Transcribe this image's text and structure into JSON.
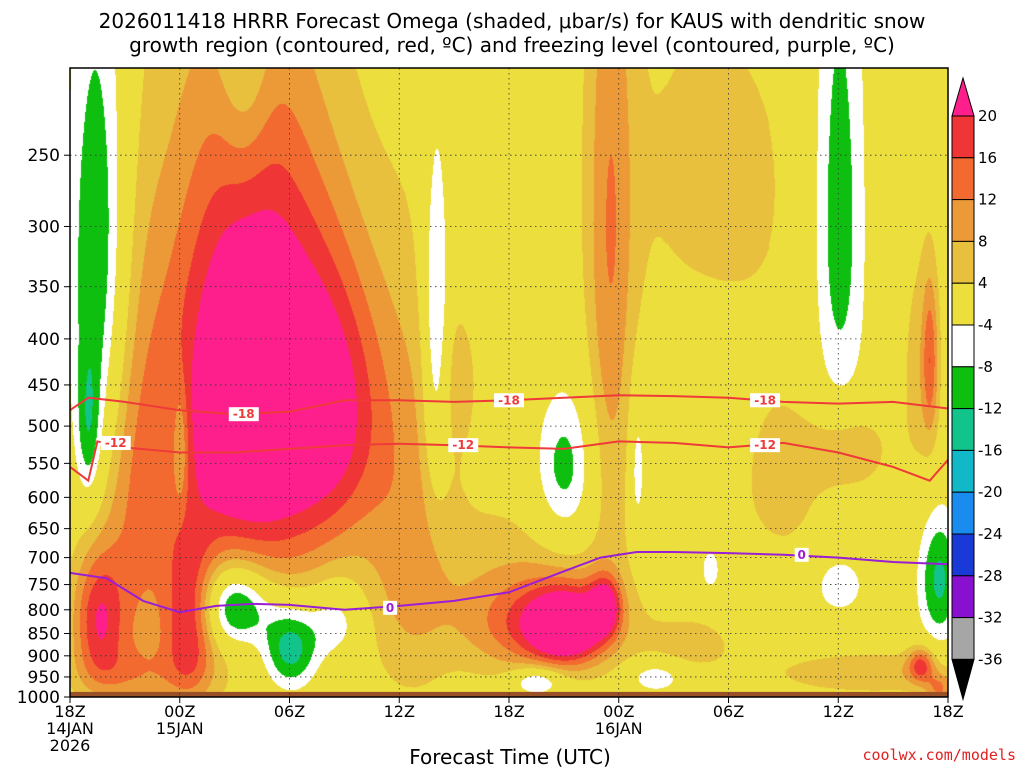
{
  "chart_data": {
    "type": "heatmap",
    "title_line1": "2026011418 HRRR Forecast Omega (shaded, μbar/s) for KAUS with dendritic snow",
    "title_line2": "growth region (contoured, red, ºC) and freezing level (contoured, purple, ºC)",
    "xlabel": "Forecast Time (UTC)",
    "ylabel": "",
    "x_range_hours": [
      0,
      48
    ],
    "y_range_hPa": [
      200,
      1000
    ],
    "y_ticks": [
      "250",
      "300",
      "350",
      "400",
      "450",
      "500",
      "550",
      "600",
      "650",
      "700",
      "750",
      "800",
      "850",
      "900",
      "950",
      "1000"
    ],
    "y_tick_values": [
      250,
      300,
      350,
      400,
      450,
      500,
      550,
      600,
      650,
      700,
      750,
      800,
      850,
      900,
      950,
      1000
    ],
    "x_ticks": [
      {
        "hour": 0,
        "line1": "18Z",
        "line2": "14JAN",
        "line3": "2026"
      },
      {
        "hour": 6,
        "line1": "00Z",
        "line2": "15JAN",
        "line3": ""
      },
      {
        "hour": 12,
        "line1": "06Z",
        "line2": "",
        "line3": ""
      },
      {
        "hour": 18,
        "line1": "12Z",
        "line2": "",
        "line3": ""
      },
      {
        "hour": 24,
        "line1": "18Z",
        "line2": "",
        "line3": ""
      },
      {
        "hour": 30,
        "line1": "00Z",
        "line2": "16JAN",
        "line3": ""
      },
      {
        "hour": 36,
        "line1": "06Z",
        "line2": "",
        "line3": ""
      },
      {
        "hour": 42,
        "line1": "12Z",
        "line2": "",
        "line3": ""
      },
      {
        "hour": 48,
        "line1": "18Z",
        "line2": "",
        "line3": ""
      }
    ],
    "grid": true,
    "colorbar": {
      "labels": [
        "20",
        "16",
        "12",
        "8",
        "4",
        "-4",
        "-8",
        "-12",
        "-16",
        "-20",
        "-24",
        "-28",
        "-32",
        "-36"
      ],
      "levels": [
        20,
        16,
        12,
        8,
        4,
        -4,
        -8,
        -12,
        -16,
        -20,
        -24,
        -28,
        -32,
        -36
      ],
      "colors": [
        "#ff1f8c",
        "#ef3535",
        "#f26a30",
        "#ec9a38",
        "#e8c03d",
        "#ecde3c",
        "#ffffff",
        "#0fbf10",
        "#12c48c",
        "#10b8c8",
        "#1a8cf0",
        "#1a3ad8",
        "#8a10d0",
        "#a6a6a6",
        "#000000"
      ]
    },
    "omega_blobs": [
      {
        "t": 1.5,
        "p": 330,
        "st": 1.2,
        "sp": 150,
        "v": -14
      },
      {
        "t": 1.0,
        "p": 510,
        "st": 0.5,
        "sp": 70,
        "v": -9
      },
      {
        "t": 9.5,
        "p": 160,
        "st": 1.0,
        "sp": 70,
        "v": -10
      },
      {
        "t": 6.0,
        "p": 530,
        "st": 0.3,
        "sp": 60,
        "v": -9
      },
      {
        "t": 9.0,
        "p": 790,
        "st": 1.4,
        "sp": 60,
        "v": -20
      },
      {
        "t": 12.0,
        "p": 880,
        "st": 1.1,
        "sp": 70,
        "v": -17
      },
      {
        "t": 14.5,
        "p": 820,
        "st": 1.1,
        "sp": 60,
        "v": -9
      },
      {
        "t": 20.0,
        "p": 400,
        "st": 0.5,
        "sp": 120,
        "v": -13
      },
      {
        "t": 27.0,
        "p": 560,
        "st": 1.2,
        "sp": 80,
        "v": -11
      },
      {
        "t": 25.5,
        "p": 960,
        "st": 1.0,
        "sp": 25,
        "v": -12
      },
      {
        "t": 31.0,
        "p": 560,
        "st": 0.3,
        "sp": 70,
        "v": -8
      },
      {
        "t": 32.0,
        "p": 950,
        "st": 1.0,
        "sp": 25,
        "v": -9
      },
      {
        "t": 35.0,
        "p": 720,
        "st": 0.4,
        "sp": 30,
        "v": -8
      },
      {
        "t": 42.0,
        "p": 290,
        "st": 1.1,
        "sp": 150,
        "v": -12
      },
      {
        "t": 42.0,
        "p": 750,
        "st": 1.0,
        "sp": 40,
        "v": -8
      },
      {
        "t": 47.5,
        "p": 740,
        "st": 0.8,
        "sp": 90,
        "v": -13
      },
      {
        "t": 10.0,
        "p": 440,
        "st": 3.0,
        "sp": 170,
        "v": 22
      },
      {
        "t": 14.5,
        "p": 480,
        "st": 2.0,
        "sp": 120,
        "v": 14
      },
      {
        "t": 9.0,
        "p": 530,
        "st": 4.5,
        "sp": 260,
        "v": 10
      },
      {
        "t": 1.5,
        "p": 820,
        "st": 1.0,
        "sp": 100,
        "v": 17
      },
      {
        "t": 6.5,
        "p": 830,
        "st": 1.0,
        "sp": 120,
        "v": 16
      },
      {
        "t": 3.5,
        "p": 650,
        "st": 1.3,
        "sp": 250,
        "v": 8
      },
      {
        "t": 18.5,
        "p": 640,
        "st": 1.6,
        "sp": 250,
        "v": 7
      },
      {
        "t": 21.0,
        "p": 440,
        "st": 1.0,
        "sp": 60,
        "v": 5
      },
      {
        "t": 26.0,
        "p": 830,
        "st": 2.6,
        "sp": 70,
        "v": 14
      },
      {
        "t": 27.2,
        "p": 835,
        "st": 1.3,
        "sp": 50,
        "v": 22
      },
      {
        "t": 29.2,
        "p": 790,
        "st": 0.6,
        "sp": 40,
        "v": 18
      },
      {
        "t": 29.5,
        "p": 340,
        "st": 0.9,
        "sp": 230,
        "v": 10
      },
      {
        "t": 24.0,
        "p": 760,
        "st": 4.5,
        "sp": 140,
        "v": 6
      },
      {
        "t": 35.0,
        "p": 260,
        "st": 5.0,
        "sp": 110,
        "v": 5
      },
      {
        "t": 39.0,
        "p": 580,
        "st": 2.5,
        "sp": 120,
        "v": 5
      },
      {
        "t": 42.5,
        "p": 530,
        "st": 1.5,
        "sp": 40,
        "v": 8
      },
      {
        "t": 46.5,
        "p": 440,
        "st": 0.8,
        "sp": 100,
        "v": 6
      },
      {
        "t": 47.0,
        "p": 420,
        "st": 0.3,
        "sp": 60,
        "v": 11
      },
      {
        "t": 44.0,
        "p": 940,
        "st": 4.5,
        "sp": 40,
        "v": 7
      },
      {
        "t": 46.5,
        "p": 920,
        "st": 0.5,
        "sp": 30,
        "v": 14
      },
      {
        "t": 47.5,
        "p": 980,
        "st": 0.5,
        "sp": 25,
        "v": 10
      },
      {
        "t": 3.5,
        "p": 940,
        "st": 2.5,
        "sp": 50,
        "v": 6
      },
      {
        "t": 34.0,
        "p": 870,
        "st": 2.0,
        "sp": 50,
        "v": 5
      }
    ],
    "isotherms": [
      {
        "name": "dgz-minus18",
        "label": "-18",
        "color": "#ef3a3a",
        "t": [
          0,
          1,
          3,
          6,
          9,
          12,
          15,
          18,
          21,
          24,
          27,
          30,
          33,
          36,
          39,
          42,
          45,
          48
        ],
        "p": [
          480,
          465,
          470,
          480,
          485,
          482,
          468,
          468,
          470,
          468,
          465,
          462,
          463,
          465,
          470,
          472,
          470,
          478
        ]
      },
      {
        "name": "dgz-minus12",
        "label": "-12",
        "color": "#ef3a3a",
        "t": [
          0,
          1,
          1.5,
          3,
          6,
          9,
          12,
          15,
          18,
          21,
          24,
          27,
          30,
          33,
          36,
          39,
          42,
          45,
          47,
          48
        ],
        "p": [
          555,
          575,
          520,
          528,
          535,
          535,
          530,
          525,
          523,
          525,
          528,
          530,
          520,
          522,
          528,
          522,
          535,
          555,
          575,
          545
        ]
      },
      {
        "name": "freezing-level-0",
        "label": "0",
        "color": "#9a1ed6",
        "t": [
          0,
          2,
          4,
          6,
          8,
          10,
          12,
          15,
          18,
          21,
          24,
          27,
          29,
          31,
          33,
          36,
          39,
          42,
          45,
          48
        ],
        "p": [
          728,
          738,
          782,
          805,
          792,
          788,
          790,
          800,
          792,
          782,
          765,
          725,
          700,
          690,
          690,
          692,
          695,
          700,
          708,
          712
        ]
      }
    ],
    "contour_labels": [
      {
        "text": "-18",
        "t": 9.5,
        "p": 485
      },
      {
        "text": "-18",
        "t": 24.0,
        "p": 468
      },
      {
        "text": "-18",
        "t": 38.0,
        "p": 468
      },
      {
        "text": "-12",
        "t": 2.5,
        "p": 522
      },
      {
        "text": "-12",
        "t": 21.5,
        "p": 525
      },
      {
        "text": "-12",
        "t": 38.0,
        "p": 525
      },
      {
        "text": "0",
        "t": 17.5,
        "p": 796
      },
      {
        "text": "0",
        "t": 40.0,
        "p": 695
      }
    ],
    "credit": "coolwx.com/models"
  }
}
